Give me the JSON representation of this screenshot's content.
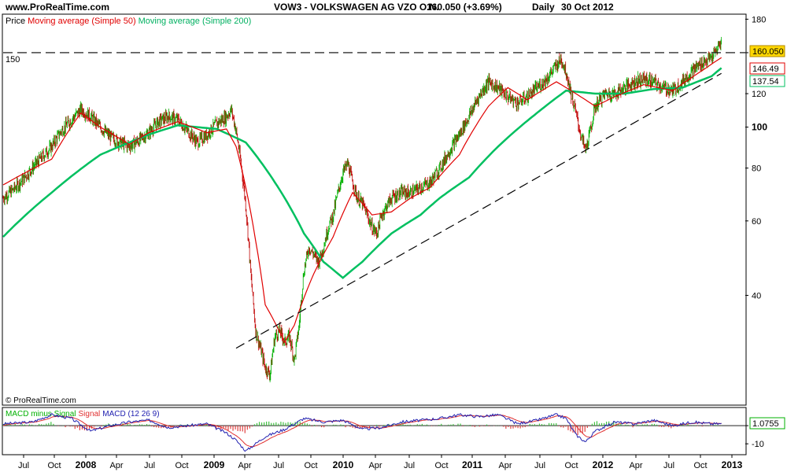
{
  "header": {
    "site": "www.ProRealTime.com",
    "title": "VOW3 - VOLKSWAGEN AG VZO O.N.",
    "price_change": "160.050 (+3.69%)",
    "period": "Daily",
    "date": "30 Oct 2012"
  },
  "legend": {
    "price": "Price",
    "ma50": "Moving average (Simple 50)",
    "ma200": "Moving average (Simple 200)"
  },
  "copyright": "© ProRealTime.com",
  "hline_label": "150",
  "badges": {
    "last": "160.050",
    "ma50": "146.49",
    "ma200": "137.54",
    "macd": "1.0755"
  },
  "macd_legend": {
    "hist": "MACD minus Signal",
    "signal": "Signal",
    "macd": "MACD (12 26 9)"
  },
  "colors": {
    "up": "#00b000",
    "down": "#c00000",
    "ma50": "#e00000",
    "ma200": "#00c060",
    "macd": "#2020b0",
    "signal": "#e03030",
    "last_badge": "#ffd700"
  },
  "chart_data": {
    "type": "line",
    "y_scale": "log",
    "ylim": [
      22,
      185
    ],
    "y_ticks": [
      40,
      60,
      80,
      100,
      120,
      150,
      180
    ],
    "y_tick_labels": [
      "40",
      "60",
      "80",
      "100",
      "120",
      "",
      "180"
    ],
    "x_labels": [
      "Jul",
      "Oct",
      "2008",
      "Apr",
      "Jul",
      "Oct",
      "2009",
      "Apr",
      "Jul",
      "Oct",
      "2010",
      "Apr",
      "Jul",
      "Oct",
      "2011",
      "Apr",
      "Jul",
      "Oct",
      "2012",
      "Apr",
      "Jul",
      "Oct",
      "2013"
    ],
    "x_label_bold": [
      false,
      false,
      true,
      false,
      false,
      false,
      true,
      false,
      false,
      false,
      true,
      false,
      false,
      false,
      true,
      false,
      false,
      false,
      true,
      false,
      false,
      false,
      true
    ],
    "price_key": [
      [
        0,
        68
      ],
      [
        2,
        71
      ],
      [
        4,
        75
      ],
      [
        6,
        80
      ],
      [
        8,
        85
      ],
      [
        10,
        90
      ],
      [
        12,
        98
      ],
      [
        14,
        104
      ],
      [
        16,
        110
      ],
      [
        18,
        106
      ],
      [
        20,
        100
      ],
      [
        22,
        95
      ],
      [
        24,
        92
      ],
      [
        26,
        90
      ],
      [
        28,
        93
      ],
      [
        30,
        97
      ],
      [
        32,
        103
      ],
      [
        34,
        106
      ],
      [
        36,
        104
      ],
      [
        38,
        98
      ],
      [
        40,
        92
      ],
      [
        42,
        96
      ],
      [
        44,
        102
      ],
      [
        46,
        106
      ],
      [
        47,
        110
      ],
      [
        48,
        98
      ],
      [
        49,
        82
      ],
      [
        50,
        65
      ],
      [
        51,
        45
      ],
      [
        52,
        33
      ],
      [
        53,
        30
      ],
      [
        54,
        27
      ],
      [
        55,
        26
      ],
      [
        56,
        32
      ],
      [
        57,
        33
      ],
      [
        58,
        31
      ],
      [
        59,
        32
      ],
      [
        60,
        28
      ],
      [
        61,
        34
      ],
      [
        62,
        46
      ],
      [
        63,
        52
      ],
      [
        64,
        50
      ],
      [
        65,
        48
      ],
      [
        66,
        52
      ],
      [
        67,
        58
      ],
      [
        68,
        62
      ],
      [
        69,
        70
      ],
      [
        70,
        78
      ],
      [
        71,
        82
      ],
      [
        72,
        74
      ],
      [
        73,
        68
      ],
      [
        74,
        66
      ],
      [
        75,
        62
      ],
      [
        76,
        58
      ],
      [
        77,
        56
      ],
      [
        78,
        62
      ],
      [
        80,
        68
      ],
      [
        82,
        70
      ],
      [
        84,
        70
      ],
      [
        86,
        72
      ],
      [
        88,
        74
      ],
      [
        90,
        80
      ],
      [
        92,
        88
      ],
      [
        94,
        96
      ],
      [
        96,
        106
      ],
      [
        98,
        118
      ],
      [
        100,
        128
      ],
      [
        102,
        124
      ],
      [
        104,
        118
      ],
      [
        106,
        114
      ],
      [
        108,
        118
      ],
      [
        110,
        124
      ],
      [
        112,
        130
      ],
      [
        114,
        140
      ],
      [
        115,
        145
      ],
      [
        116,
        135
      ],
      [
        117,
        120
      ],
      [
        118,
        108
      ],
      [
        119,
        96
      ],
      [
        120,
        88
      ],
      [
        121,
        98
      ],
      [
        122,
        112
      ],
      [
        124,
        120
      ],
      [
        126,
        120
      ],
      [
        128,
        124
      ],
      [
        130,
        128
      ],
      [
        132,
        130
      ],
      [
        134,
        128
      ],
      [
        136,
        124
      ],
      [
        138,
        122
      ],
      [
        140,
        128
      ],
      [
        142,
        136
      ],
      [
        144,
        142
      ],
      [
        146,
        146
      ],
      [
        147,
        152
      ],
      [
        148,
        160
      ]
    ],
    "ma_key": [
      [
        0,
        50,
        73
      ],
      [
        0,
        200,
        55
      ],
      [
        10,
        50,
        84
      ],
      [
        10,
        200,
        70
      ],
      [
        16,
        50,
        108
      ],
      [
        20,
        50,
        100
      ],
      [
        20,
        200,
        86
      ],
      [
        26,
        50,
        91
      ],
      [
        30,
        50,
        97
      ],
      [
        30,
        200,
        96
      ],
      [
        36,
        50,
        103
      ],
      [
        36,
        200,
        101
      ],
      [
        42,
        50,
        97
      ],
      [
        44,
        200,
        99
      ],
      [
        46,
        50,
        99
      ],
      [
        48,
        50,
        90
      ],
      [
        50,
        200,
        92
      ],
      [
        52,
        50,
        54
      ],
      [
        54,
        50,
        38
      ],
      [
        56,
        200,
        74
      ],
      [
        58,
        50,
        31
      ],
      [
        60,
        50,
        34
      ],
      [
        62,
        200,
        56
      ],
      [
        64,
        50,
        45
      ],
      [
        66,
        200,
        48
      ],
      [
        68,
        50,
        55
      ],
      [
        70,
        200,
        44
      ],
      [
        72,
        50,
        70
      ],
      [
        74,
        200,
        48
      ],
      [
        76,
        50,
        62
      ],
      [
        80,
        50,
        63
      ],
      [
        80,
        200,
        56
      ],
      [
        84,
        50,
        68
      ],
      [
        86,
        200,
        62
      ],
      [
        88,
        50,
        72
      ],
      [
        90,
        200,
        68
      ],
      [
        94,
        50,
        86
      ],
      [
        96,
        200,
        76
      ],
      [
        100,
        50,
        112
      ],
      [
        102,
        200,
        90
      ],
      [
        104,
        50,
        124
      ],
      [
        108,
        50,
        116
      ],
      [
        110,
        200,
        108
      ],
      [
        114,
        50,
        128
      ],
      [
        116,
        200,
        122
      ],
      [
        118,
        50,
        120
      ],
      [
        122,
        50,
        112
      ],
      [
        122,
        200,
        120
      ],
      [
        126,
        50,
        118
      ],
      [
        128,
        200,
        120
      ],
      [
        132,
        50,
        126
      ],
      [
        134,
        200,
        123
      ],
      [
        138,
        50,
        122
      ],
      [
        140,
        200,
        124
      ],
      [
        144,
        50,
        136
      ],
      [
        146,
        200,
        132
      ],
      [
        148,
        50,
        146
      ],
      [
        148,
        200,
        138
      ]
    ],
    "trendline": [
      [
        48,
        30
      ],
      [
        148,
        134
      ]
    ],
    "hline": 150,
    "macd_key": [
      [
        0,
        1
      ],
      [
        6,
        2
      ],
      [
        10,
        6
      ],
      [
        14,
        4
      ],
      [
        18,
        -3
      ],
      [
        22,
        0
      ],
      [
        26,
        2
      ],
      [
        30,
        3
      ],
      [
        34,
        -1
      ],
      [
        38,
        0
      ],
      [
        42,
        1
      ],
      [
        46,
        -4
      ],
      [
        48,
        -8
      ],
      [
        50,
        -14
      ],
      [
        52,
        -10
      ],
      [
        54,
        -6
      ],
      [
        58,
        -2
      ],
      [
        62,
        4
      ],
      [
        66,
        2
      ],
      [
        70,
        3
      ],
      [
        74,
        -2
      ],
      [
        78,
        -1
      ],
      [
        82,
        2
      ],
      [
        86,
        3
      ],
      [
        90,
        4
      ],
      [
        94,
        6
      ],
      [
        98,
        5
      ],
      [
        102,
        6
      ],
      [
        106,
        1
      ],
      [
        110,
        3
      ],
      [
        114,
        6
      ],
      [
        116,
        4
      ],
      [
        118,
        -5
      ],
      [
        120,
        -9
      ],
      [
        122,
        -3
      ],
      [
        126,
        2
      ],
      [
        130,
        1
      ],
      [
        134,
        3
      ],
      [
        138,
        0
      ],
      [
        142,
        2
      ],
      [
        146,
        1
      ],
      [
        148,
        1.07
      ]
    ],
    "macd_ticks": [
      0,
      -10
    ],
    "macd_tick_labels": [
      "",
      "-10"
    ]
  }
}
